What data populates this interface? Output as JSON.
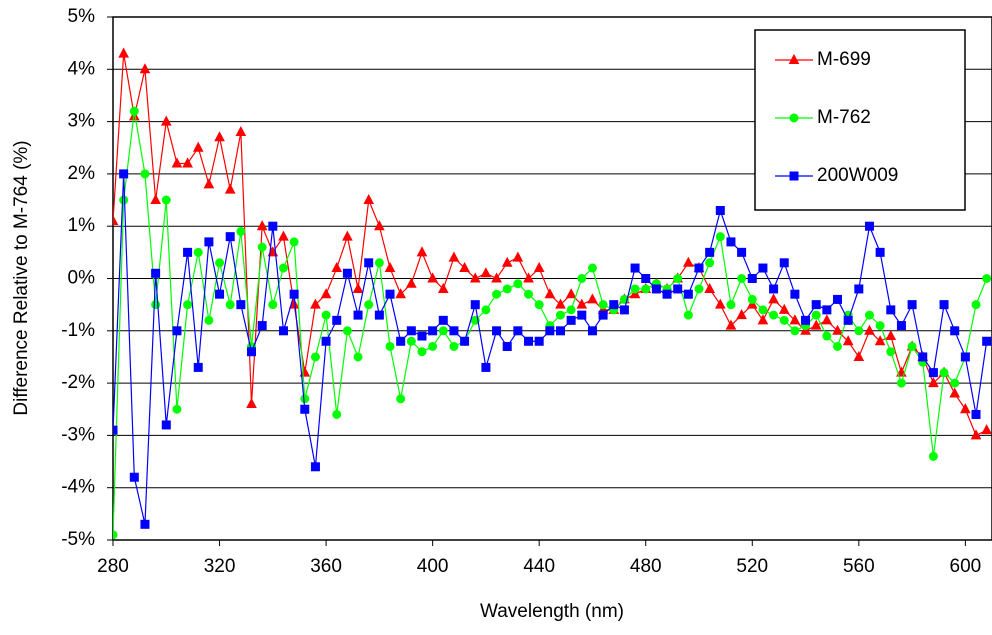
{
  "chart_data": {
    "type": "line",
    "xlabel": "Wavelength (nm)",
    "ylabel": "Difference Relative to M-764 (%)",
    "x": [
      280,
      284,
      288,
      292,
      296,
      300,
      304,
      308,
      312,
      316,
      320,
      324,
      328,
      332,
      336,
      340,
      344,
      348,
      352,
      356,
      360,
      364,
      368,
      372,
      376,
      380,
      384,
      388,
      392,
      396,
      400,
      404,
      408,
      412,
      416,
      420,
      424,
      428,
      432,
      436,
      440,
      444,
      448,
      452,
      456,
      460,
      464,
      468,
      472,
      476,
      480,
      484,
      488,
      492,
      496,
      500,
      504,
      508,
      512,
      516,
      520,
      524,
      528,
      532,
      536,
      540,
      544,
      548,
      552,
      556,
      560,
      564,
      568,
      572,
      576,
      580,
      584,
      588,
      592,
      596,
      600,
      604,
      608
    ],
    "series": [
      {
        "name": "M-699",
        "color": "#ff0000",
        "marker": "triangle",
        "values": [
          1.1,
          4.3,
          3.1,
          4.0,
          1.5,
          3.0,
          2.2,
          2.2,
          2.5,
          1.8,
          2.7,
          1.7,
          2.8,
          -2.4,
          1.0,
          0.5,
          0.8,
          -0.5,
          -1.8,
          -0.5,
          -0.3,
          0.2,
          0.8,
          -0.2,
          1.5,
          1.0,
          0.2,
          -0.3,
          -0.1,
          0.5,
          0.0,
          -0.2,
          0.4,
          0.2,
          0.0,
          0.1,
          0.0,
          0.3,
          0.4,
          0.0,
          0.2,
          -0.3,
          -0.5,
          -0.3,
          -0.5,
          -0.4,
          -0.6,
          -0.6,
          -0.4,
          -0.3,
          -0.2,
          -0.1,
          -0.2,
          0.0,
          0.3,
          0.2,
          -0.2,
          -0.5,
          -0.9,
          -0.7,
          -0.5,
          -0.8,
          -0.4,
          -0.6,
          -0.8,
          -1.0,
          -0.9,
          -0.8,
          -1.0,
          -1.2,
          -1.5,
          -1.0,
          -1.2,
          -1.1,
          -1.8,
          -1.3,
          -1.5,
          -2.0,
          -1.8,
          -2.2,
          -2.5,
          -3.0,
          -2.9
        ]
      },
      {
        "name": "M-762",
        "color": "#00ff00",
        "marker": "circle",
        "values": [
          -4.9,
          1.5,
          3.2,
          2.0,
          -0.5,
          1.5,
          -2.5,
          -0.5,
          0.5,
          -0.8,
          0.3,
          -0.5,
          0.9,
          -1.3,
          0.6,
          -0.5,
          0.2,
          0.7,
          -2.3,
          -1.5,
          -0.7,
          -2.6,
          -1.0,
          -1.5,
          -0.5,
          0.3,
          -1.3,
          -2.3,
          -1.2,
          -1.4,
          -1.3,
          -1.0,
          -1.3,
          -1.2,
          -0.8,
          -0.6,
          -0.3,
          -0.2,
          -0.1,
          -0.3,
          -0.5,
          -0.9,
          -0.7,
          -0.6,
          0.0,
          0.2,
          -0.5,
          -0.6,
          -0.4,
          -0.2,
          -0.2,
          -0.1,
          -0.2,
          0.0,
          -0.7,
          -0.2,
          0.3,
          0.8,
          -0.5,
          0.0,
          -0.4,
          -0.6,
          -0.7,
          -0.8,
          -1.0,
          -0.9,
          -0.7,
          -1.1,
          -1.3,
          -0.7,
          -1.0,
          -0.7,
          -0.9,
          -1.4,
          -2.0,
          -1.3,
          -1.6,
          -3.4,
          -1.8,
          -2.0,
          -1.5,
          -0.5,
          0.0
        ]
      },
      {
        "name": "200W009",
        "color": "#0000ff",
        "marker": "square",
        "values": [
          -2.9,
          2.0,
          -3.8,
          -4.7,
          0.1,
          -2.8,
          -1.0,
          0.5,
          -1.7,
          0.7,
          -0.3,
          0.8,
          -0.5,
          -1.4,
          -0.9,
          1.0,
          -1.0,
          -0.3,
          -2.5,
          -3.6,
          -1.2,
          -0.8,
          0.1,
          -0.7,
          0.3,
          -0.7,
          -0.3,
          -1.2,
          -1.0,
          -1.1,
          -1.0,
          -0.8,
          -1.0,
          -1.2,
          -0.5,
          -1.7,
          -1.0,
          -1.3,
          -1.0,
          -1.2,
          -1.2,
          -1.0,
          -1.0,
          -0.8,
          -0.7,
          -1.0,
          -0.7,
          -0.5,
          -0.6,
          0.2,
          0.0,
          -0.2,
          -0.3,
          -0.2,
          -0.3,
          0.2,
          0.5,
          1.3,
          0.7,
          0.5,
          0.0,
          0.2,
          -0.2,
          0.3,
          -0.3,
          -0.8,
          -0.5,
          -0.6,
          -0.4,
          -0.8,
          -0.2,
          1.0,
          0.5,
          -0.6,
          -0.9,
          -0.5,
          -1.5,
          -1.8,
          -0.5,
          -1.0,
          -1.5,
          -2.6,
          -1.2
        ]
      }
    ],
    "xlim": [
      280,
      610
    ],
    "xticks": [
      280,
      320,
      360,
      400,
      440,
      480,
      520,
      560,
      600
    ],
    "ylim": [
      -5,
      5
    ],
    "yticks": [
      {
        "value": -5,
        "label": "-5%"
      },
      {
        "value": -4,
        "label": "-4%"
      },
      {
        "value": -3,
        "label": "-3%"
      },
      {
        "value": -2,
        "label": "-2%"
      },
      {
        "value": -1,
        "label": "-1%"
      },
      {
        "value": 0,
        "label": "0%"
      },
      {
        "value": 1,
        "label": "1%"
      },
      {
        "value": 2,
        "label": "2%"
      },
      {
        "value": 3,
        "label": "3%"
      },
      {
        "value": 4,
        "label": "4%"
      },
      {
        "value": 5,
        "label": "5%"
      }
    ],
    "grid": true,
    "legend": "upper right"
  }
}
